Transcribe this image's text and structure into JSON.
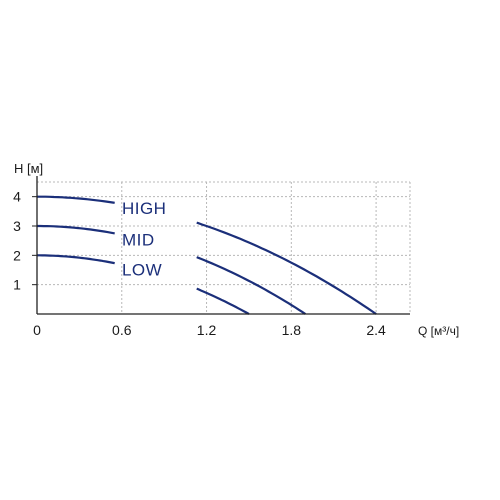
{
  "chart_data": {
    "type": "line",
    "xlabel": "Q [м³/ч]",
    "ylabel": "H [м]",
    "xlim": [
      0,
      2.64
    ],
    "ylim": [
      0,
      4.5
    ],
    "xticks": [
      "0",
      "0.6",
      "1.2",
      "1.8",
      "2.4"
    ],
    "yticks": [
      "1",
      "2",
      "3",
      "4"
    ],
    "grid": true,
    "colors": {
      "series": "#1b2f7a",
      "grid": "#b8b8b8",
      "axis": "#222222"
    },
    "series": [
      {
        "name": "HIGH",
        "h0": 4.0,
        "qmax": 2.4,
        "label_at": 0.55
      },
      {
        "name": "MID",
        "h0": 3.0,
        "qmax": 1.9,
        "label_at": 0.55
      },
      {
        "name": "LOW",
        "h0": 2.0,
        "qmax": 1.5,
        "label_at": 0.55
      }
    ]
  }
}
